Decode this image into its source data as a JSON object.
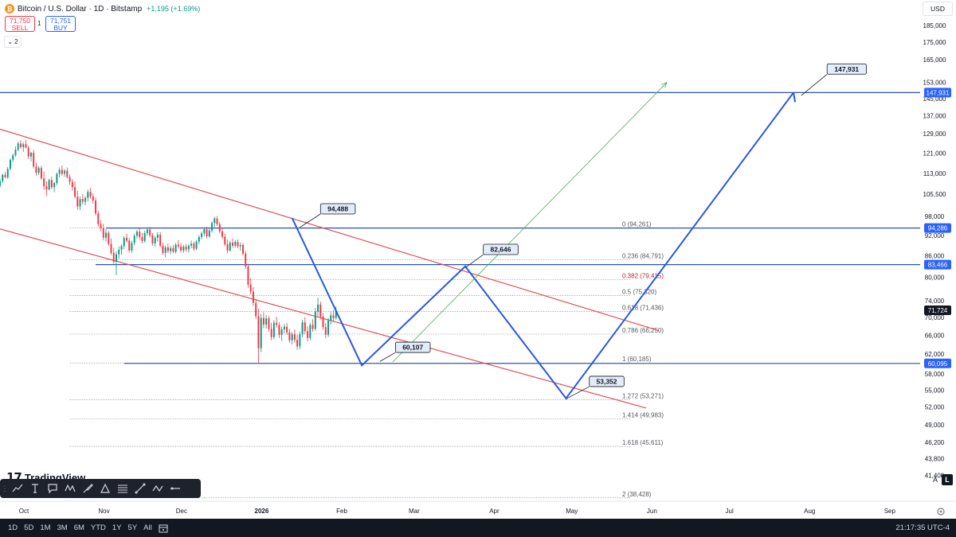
{
  "header": {
    "title": "Bitcoin / U.S. Dollar · 1D · Bitstamp",
    "change": "+1,195 (+1.69%)",
    "sell_price": "71,750",
    "sell_label": "SELL",
    "spread": "1",
    "buy_price": "71,751",
    "buy_label": "BUY",
    "indicator_count": "2",
    "currency": "USD"
  },
  "brand": {
    "logo_text": "TradingView",
    "logo_mark": "17"
  },
  "toolbar": {
    "tools": [
      "trend-line-icon",
      "text-tool-icon",
      "note-icon",
      "pattern-icon",
      "brush-icon",
      "triangle-tool-icon",
      "fib-retracement-icon",
      "line-tool-icon",
      "path-tool-icon",
      "horizontal-ray-icon"
    ]
  },
  "scale_buttons": {
    "auto": "A",
    "log": "L"
  },
  "bottom": {
    "ranges": [
      "1D",
      "5D",
      "1M",
      "3M",
      "6M",
      "YTD",
      "1Y",
      "5Y",
      "All"
    ],
    "clock": "21:17:35 UTC-4"
  },
  "colors": {
    "up": "#089981",
    "down": "#f23645",
    "channel": "#e0505a",
    "projection": "#2958e0",
    "hline": "#2b55a4",
    "fib": "#787b86",
    "price_tag": "#131722",
    "level_tag": "#2962ff"
  },
  "chart_data": {
    "type": "candlestick",
    "symbol": "BTCUSD",
    "timeframe": "1D",
    "y_scale": "log",
    "ylim": [
      38000,
      195000
    ],
    "y_ticks": [
      "185,000",
      "175,000",
      "165,000",
      "153,000",
      "145,000",
      "137,000",
      "129,000",
      "121,000",
      "113,000",
      "105,500",
      "98,000",
      "92,000",
      "86,000",
      "80,000",
      "74,000",
      "70,000",
      "66,000",
      "62,000",
      "58,000",
      "55,000",
      "52,000",
      "49,000",
      "46,200",
      "43,800",
      "41,400"
    ],
    "y_tick_values": [
      185000,
      175000,
      165000,
      153000,
      145000,
      137000,
      129000,
      121000,
      113000,
      105500,
      98000,
      92000,
      86000,
      80000,
      74000,
      70000,
      66000,
      62000,
      58000,
      55000,
      52000,
      49000,
      46200,
      43800,
      41400
    ],
    "x_ticks": [
      "Oct",
      "Nov",
      "Dec",
      "2026",
      "Feb",
      "Mar",
      "Apr",
      "May",
      "Jun",
      "Jul",
      "Aug",
      "Sep"
    ],
    "x_tick_dates": [
      "2025-10-01",
      "2025-11-01",
      "2025-12-01",
      "2026-01-01",
      "2026-02-01",
      "2026-03-01",
      "2026-04-01",
      "2026-05-01",
      "2026-06-01",
      "2026-07-01",
      "2026-08-01",
      "2026-09-01"
    ],
    "x_range": [
      "2025-09-23",
      "2026-09-14"
    ],
    "price_tags": [
      {
        "label": "147,931",
        "value": 147931,
        "kind": "level"
      },
      {
        "label": "94,286",
        "value": 94286,
        "kind": "level"
      },
      {
        "label": "83,466",
        "value": 83466,
        "kind": "level"
      },
      {
        "label": "71,724",
        "value": 71724,
        "kind": "last"
      },
      {
        "label": "60,095",
        "value": 60095,
        "kind": "level"
      }
    ],
    "horizontal_lines": [
      {
        "value": 147931,
        "from": "2025-09-23"
      },
      {
        "value": 94286,
        "from": "2025-11-03"
      },
      {
        "value": 83466,
        "from": "2025-10-30"
      },
      {
        "value": 60095,
        "from": "2025-11-10"
      }
    ],
    "fib_levels": [
      {
        "label": "0 (94,261)",
        "value": 94261
      },
      {
        "label": "0.236 (84,791)",
        "value": 84791
      },
      {
        "label": "0.382 (79,415)",
        "value": 79415,
        "emphasis": true
      },
      {
        "label": "0.5 (75,320)",
        "value": 75320
      },
      {
        "label": "0.618 (71,436)",
        "value": 71436
      },
      {
        "label": "0.786 (66,250)",
        "value": 66250
      },
      {
        "label": "1 (60,185)",
        "value": 60185
      },
      {
        "label": "1.272 (53,271)",
        "value": 53271
      },
      {
        "label": "1.414 (49,983)",
        "value": 49983
      },
      {
        "label": "1.618 (45,611)",
        "value": 45611
      },
      {
        "label": "2 (38,428)",
        "value": 38428
      }
    ],
    "fib_span": [
      "2025-10-20",
      "2026-05-25"
    ],
    "channel_lines": [
      {
        "points": [
          [
            "2025-09-23",
            131000
          ],
          [
            "2026-06-05",
            67000
          ]
        ]
      },
      {
        "points": [
          [
            "2025-09-23",
            94000
          ],
          [
            "2026-05-31",
            51800
          ]
        ]
      }
    ],
    "projection_path": [
      [
        "2026-01-14",
        97500
      ],
      [
        "2026-02-10",
        59700
      ],
      [
        "2026-03-22",
        83000
      ],
      [
        "2026-04-30",
        53500
      ],
      [
        "2026-07-27",
        147931
      ]
    ],
    "projection_arrow": [
      [
        "2026-02-22",
        60400
      ],
      [
        "2026-06-08",
        153000
      ]
    ],
    "callouts": [
      {
        "label": "94,488",
        "anchor": [
          "2026-01-17",
          94488
        ],
        "box_at": [
          "2026-01-25",
          100500
        ]
      },
      {
        "label": "82,646",
        "anchor": [
          "2026-03-22",
          82646
        ],
        "box_at": [
          "2026-03-29",
          87800
        ]
      },
      {
        "label": "60,107",
        "anchor": [
          "2026-02-17",
          60500
        ],
        "box_at": [
          "2026-02-23",
          63400
        ]
      },
      {
        "label": "53,352",
        "anchor": [
          "2026-04-30",
          53400
        ],
        "box_at": [
          "2026-05-09",
          56600
        ]
      },
      {
        "label": "147,931",
        "anchor": [
          "2026-07-30",
          146500
        ],
        "box_at": [
          "2026-08-09",
          160000
        ]
      }
    ],
    "candles_start": "2025-09-23",
    "candles": [
      [
        108500,
        111000,
        107800,
        110200
      ],
      [
        110200,
        113000,
        109500,
        112500
      ],
      [
        112500,
        113600,
        111200,
        111600
      ],
      [
        111600,
        115500,
        111000,
        114800
      ],
      [
        114800,
        118800,
        114200,
        118300
      ],
      [
        118300,
        120800,
        117400,
        120100
      ],
      [
        120100,
        123700,
        119500,
        122300
      ],
      [
        122300,
        125600,
        121800,
        124900
      ],
      [
        124900,
        126300,
        122800,
        123400
      ],
      [
        123400,
        125400,
        121500,
        124600
      ],
      [
        124600,
        126200,
        122900,
        123100
      ],
      [
        123100,
        124000,
        118600,
        119600
      ],
      [
        119600,
        121500,
        117700,
        121100
      ],
      [
        121100,
        122300,
        115000,
        115700
      ],
      [
        115700,
        117300,
        112200,
        113300
      ],
      [
        113300,
        115800,
        112400,
        115100
      ],
      [
        115100,
        116000,
        110700,
        111200
      ],
      [
        111200,
        113800,
        107000,
        108300
      ],
      [
        108300,
        110100,
        104900,
        107200
      ],
      [
        107200,
        111100,
        106800,
        110600
      ],
      [
        110600,
        111900,
        107300,
        108000
      ],
      [
        108000,
        109900,
        106200,
        109500
      ],
      [
        109500,
        113400,
        108700,
        112900
      ],
      [
        112900,
        115300,
        111600,
        114400
      ],
      [
        114400,
        116100,
        112200,
        112900
      ],
      [
        112900,
        114700,
        111700,
        114100
      ],
      [
        114100,
        115300,
        111200,
        111700
      ],
      [
        111700,
        112600,
        108800,
        109900
      ],
      [
        109900,
        110900,
        106800,
        108000
      ],
      [
        108000,
        110100,
        104000,
        104600
      ],
      [
        104600,
        106700,
        100200,
        101300
      ],
      [
        101300,
        104700,
        100100,
        103800
      ],
      [
        103800,
        105600,
        102000,
        102900
      ],
      [
        102900,
        104800,
        101700,
        104200
      ],
      [
        104200,
        107200,
        103000,
        106300
      ],
      [
        106300,
        107700,
        103900,
        104700
      ],
      [
        104700,
        105800,
        102300,
        103300
      ],
      [
        103300,
        104400,
        98300,
        99000
      ],
      [
        99000,
        99800,
        94700,
        95500
      ],
      [
        95500,
        96800,
        93300,
        94200
      ],
      [
        94200,
        95600,
        90500,
        91300
      ],
      [
        91300,
        93900,
        90100,
        92800
      ],
      [
        92800,
        93400,
        88800,
        89400
      ],
      [
        89400,
        91100,
        86200,
        86800
      ],
      [
        86800,
        88300,
        83400,
        84300
      ],
      [
        84300,
        87200,
        80600,
        86400
      ],
      [
        86400,
        88700,
        85100,
        87700
      ],
      [
        87700,
        89300,
        86200,
        88800
      ],
      [
        88800,
        91800,
        87900,
        91200
      ],
      [
        91200,
        92600,
        89800,
        90400
      ],
      [
        90400,
        91200,
        86900,
        87500
      ],
      [
        87500,
        90300,
        86800,
        89700
      ],
      [
        89700,
        92500,
        89000,
        91900
      ],
      [
        91900,
        93700,
        91100,
        93100
      ],
      [
        93100,
        94200,
        90700,
        91500
      ],
      [
        91500,
        92800,
        89600,
        90300
      ],
      [
        90300,
        93400,
        89800,
        92700
      ],
      [
        92700,
        94400,
        91900,
        93800
      ],
      [
        93800,
        94700,
        91400,
        92000
      ],
      [
        92000,
        92700,
        88900,
        89600
      ],
      [
        89600,
        91800,
        88600,
        91300
      ],
      [
        91300,
        93000,
        90100,
        92200
      ],
      [
        92200,
        93000,
        88400,
        88900
      ],
      [
        88900,
        89800,
        86200,
        86800
      ],
      [
        86800,
        88900,
        85600,
        88400
      ],
      [
        88400,
        89600,
        86700,
        87300
      ],
      [
        87300,
        88900,
        86400,
        88200
      ],
      [
        88200,
        89100,
        86800,
        87100
      ],
      [
        87100,
        89700,
        86600,
        89200
      ],
      [
        89200,
        90600,
        88100,
        88700
      ],
      [
        88700,
        89700,
        86900,
        87500
      ],
      [
        87500,
        89100,
        86800,
        88600
      ],
      [
        88600,
        89400,
        87100,
        87800
      ],
      [
        87800,
        89300,
        86900,
        88900
      ],
      [
        88900,
        90400,
        88100,
        89500
      ],
      [
        89500,
        90100,
        87400,
        88000
      ],
      [
        88000,
        90600,
        87600,
        90100
      ],
      [
        90100,
        92100,
        89300,
        91500
      ],
      [
        91500,
        93200,
        90800,
        92600
      ],
      [
        92600,
        94600,
        91800,
        93900
      ],
      [
        93900,
        94700,
        91100,
        91700
      ],
      [
        91700,
        94100,
        91200,
        93500
      ],
      [
        93500,
        96500,
        92900,
        95900
      ],
      [
        95900,
        97900,
        94600,
        97300
      ],
      [
        97300,
        98100,
        94900,
        95500
      ],
      [
        95500,
        96200,
        92600,
        93200
      ],
      [
        93200,
        94300,
        90900,
        91600
      ],
      [
        91600,
        92500,
        88800,
        89300
      ],
      [
        89300,
        90700,
        86700,
        87500
      ],
      [
        87500,
        90400,
        87100,
        89800
      ],
      [
        89800,
        91100,
        88300,
        88900
      ],
      [
        88900,
        90600,
        88300,
        90000
      ],
      [
        90000,
        90800,
        88100,
        88700
      ],
      [
        88700,
        89900,
        87400,
        89100
      ],
      [
        89100,
        89700,
        86100,
        86600
      ],
      [
        86600,
        87300,
        82300,
        83000
      ],
      [
        83000,
        83700,
        77300,
        78100
      ],
      [
        78100,
        79800,
        75600,
        76300
      ],
      [
        76300,
        77500,
        72800,
        73500
      ],
      [
        73500,
        74400,
        69700,
        70300
      ],
      [
        70300,
        72100,
        60000,
        63200
      ],
      [
        63200,
        70800,
        62400,
        69900
      ],
      [
        69900,
        71300,
        67600,
        68400
      ],
      [
        68400,
        70600,
        67500,
        69800
      ],
      [
        69800,
        70400,
        66800,
        67400
      ],
      [
        67400,
        68800,
        64900,
        65600
      ],
      [
        65600,
        69400,
        65100,
        68800
      ],
      [
        68800,
        70200,
        67700,
        68300
      ],
      [
        68300,
        68900,
        65400,
        66100
      ],
      [
        66100,
        67900,
        64800,
        67300
      ],
      [
        67300,
        68500,
        66400,
        67900
      ],
      [
        67900,
        68700,
        66100,
        66600
      ],
      [
        66600,
        67400,
        64300,
        64900
      ],
      [
        64900,
        66700,
        64000,
        66200
      ],
      [
        66200,
        67300,
        64400,
        65000
      ],
      [
        65000,
        66100,
        62900,
        63600
      ],
      [
        63600,
        66800,
        63000,
        66200
      ],
      [
        66200,
        69500,
        65600,
        68900
      ],
      [
        68900,
        70100,
        66300,
        66900
      ],
      [
        66900,
        68000,
        64700,
        65400
      ],
      [
        65400,
        68800,
        64900,
        68300
      ],
      [
        68300,
        69600,
        66800,
        67400
      ],
      [
        67400,
        72200,
        67000,
        71400
      ],
      [
        71400,
        74800,
        70300,
        73100
      ],
      [
        73100,
        73800,
        69600,
        70200
      ],
      [
        70200,
        71000,
        67200,
        67800
      ],
      [
        67800,
        68700,
        65300,
        66100
      ],
      [
        66100,
        69900,
        65600,
        69300
      ],
      [
        69300,
        71300,
        68300,
        70500
      ],
      [
        70500,
        71700,
        69100,
        69900
      ],
      [
        69900,
        72600,
        69500,
        71724
      ]
    ]
  }
}
